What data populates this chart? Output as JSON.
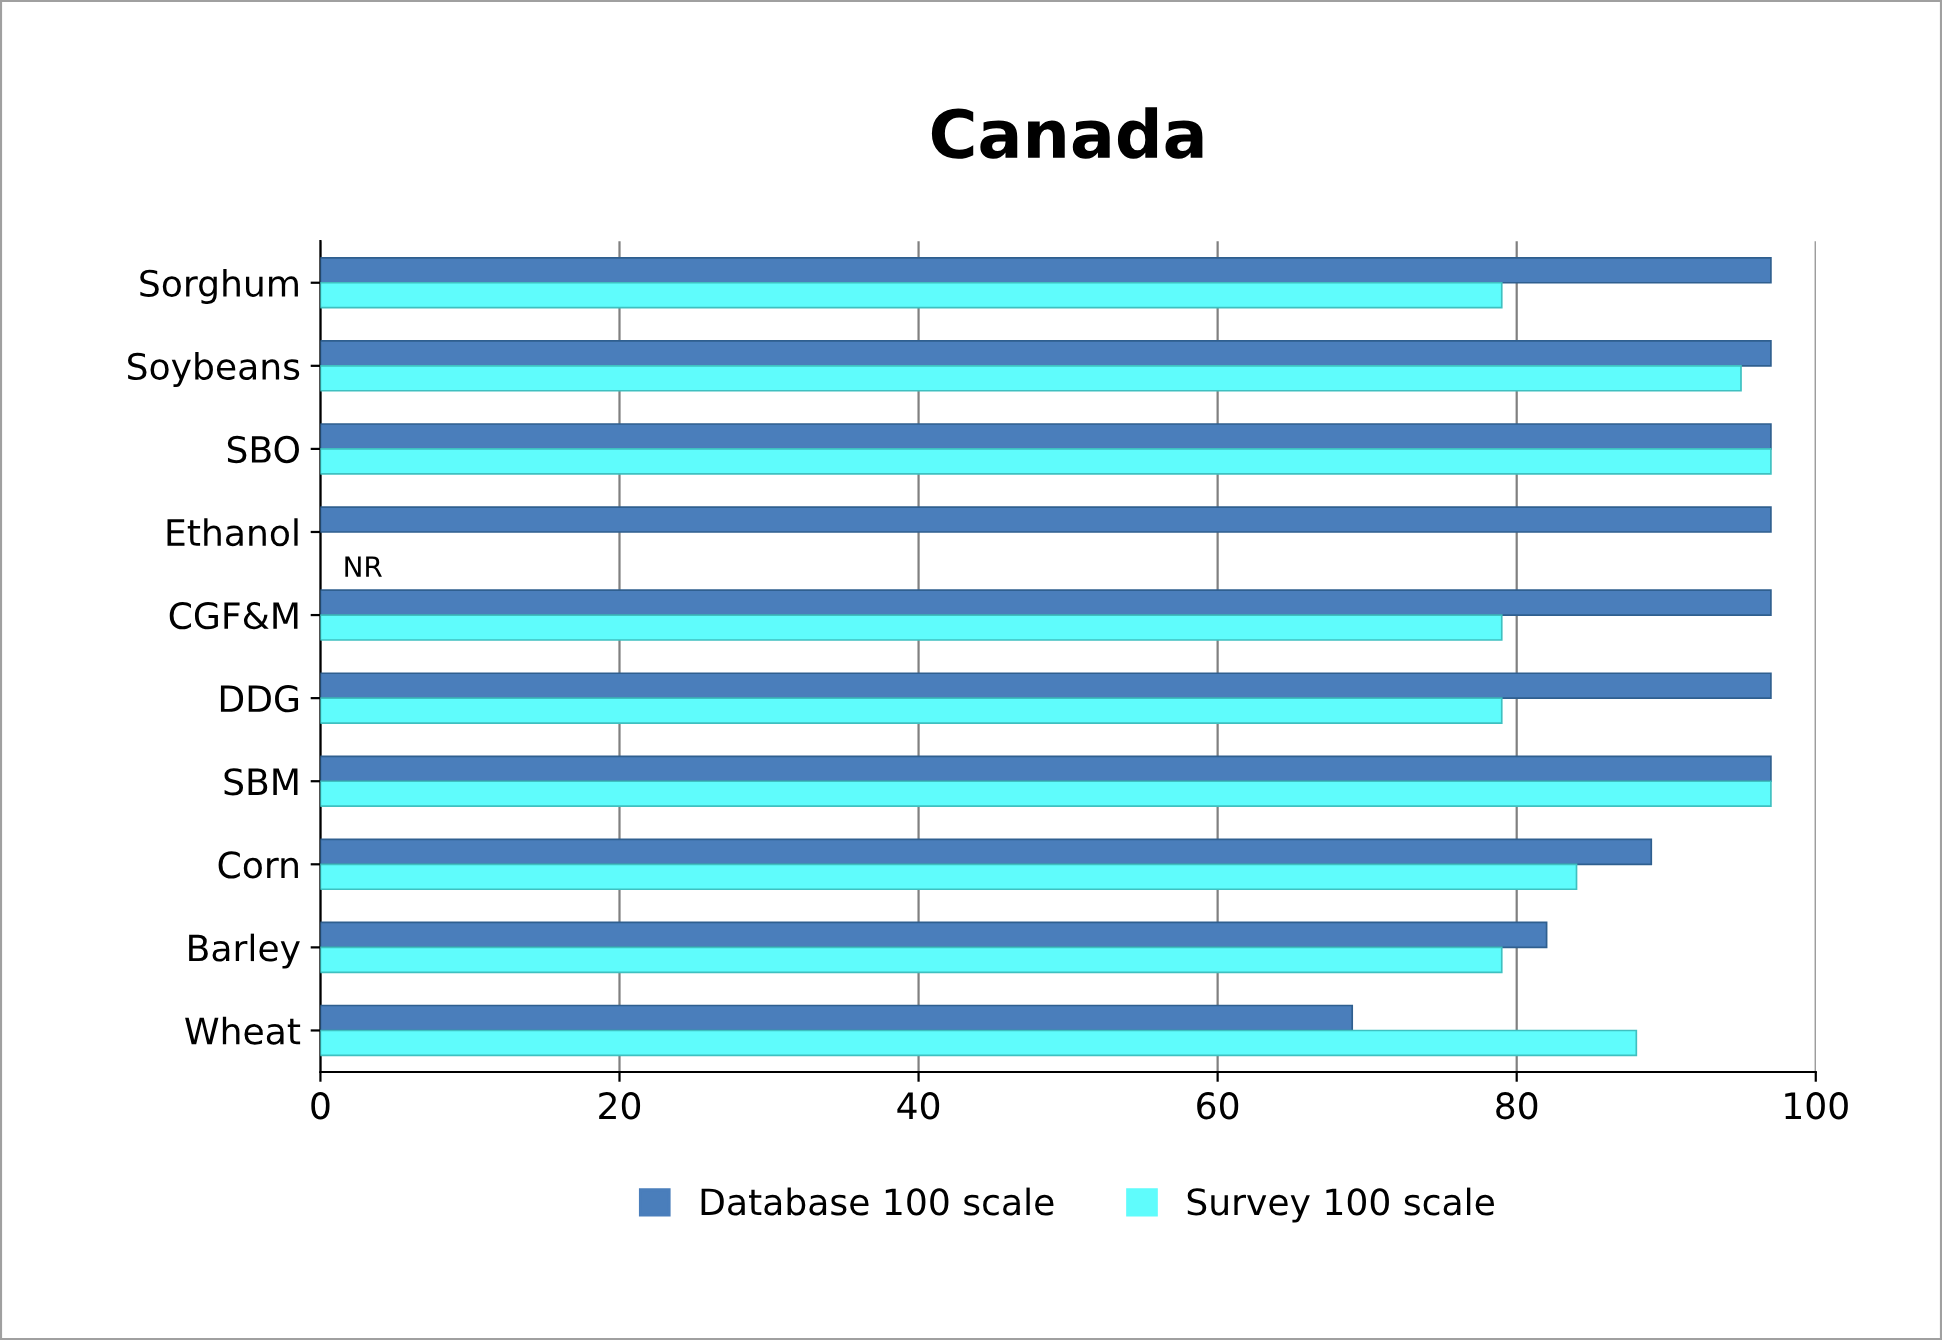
{
  "chart_data": {
    "type": "bar",
    "orientation": "horizontal",
    "title": "Canada",
    "categories": [
      "Sorghum",
      "Soybeans",
      "SBO",
      "Ethanol",
      "CGF&M",
      "DDG",
      "SBM",
      "Corn",
      "Barley",
      "Wheat"
    ],
    "series": [
      {
        "name": "Database 100 scale",
        "color": "#4a7ebb",
        "values": [
          97,
          97,
          97,
          97,
          97,
          97,
          97,
          89,
          82,
          69
        ]
      },
      {
        "name": "Survey 100 scale",
        "color": "#5ffcfc",
        "values": [
          79,
          95,
          97,
          null,
          79,
          79,
          97,
          84,
          79,
          88
        ]
      }
    ],
    "xlim": [
      0,
      100
    ],
    "xticks": [
      0,
      20,
      40,
      60,
      80,
      100
    ],
    "grid": "x",
    "legend": "bottom",
    "annotations": [
      {
        "text": "NR",
        "x": 0,
        "y": "Ethanol"
      }
    ]
  }
}
